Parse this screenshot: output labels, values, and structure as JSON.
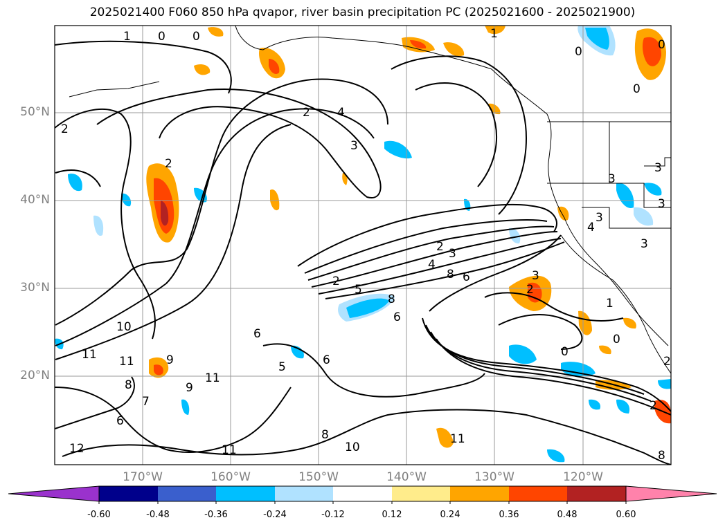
{
  "title": "2025021400 F060 850 hPa qvapor, river basin precipitation PC (2025021600 - 2025021900)",
  "map": {
    "lat_ticks": [
      {
        "label": "50°N",
        "lat": 50
      },
      {
        "label": "40°N",
        "lat": 40
      },
      {
        "label": "30°N",
        "lat": 30
      },
      {
        "label": "20°N",
        "lat": 20
      }
    ],
    "lon_ticks": [
      {
        "label": "170°W",
        "lon": -170
      },
      {
        "label": "160°W",
        "lon": -160
      },
      {
        "label": "150°W",
        "lon": -150
      },
      {
        "label": "140°W",
        "lon": -140
      },
      {
        "label": "130°W",
        "lon": -130
      },
      {
        "label": "120°W",
        "lon": -120
      }
    ],
    "extent": {
      "lon_min": -180,
      "lon_max": -110,
      "lat_min": 10,
      "lat_max": 60
    },
    "contour_labels": [
      "0",
      "1",
      "2",
      "3",
      "4",
      "5",
      "6",
      "7",
      "8",
      "9",
      "10",
      "11",
      "12"
    ],
    "gridlines": true
  },
  "colorbar": {
    "ticks": [
      "-0.60",
      "-0.48",
      "-0.36",
      "-0.24",
      "-0.12",
      "0.12",
      "0.24",
      "0.36",
      "0.48",
      "0.60"
    ],
    "colors": [
      "#9a32cd",
      "#00008b",
      "#3a5fcd",
      "#00bfff",
      "#b0e2ff",
      "#ffffff",
      "#ffec8b",
      "#ffa500",
      "#ff4500",
      "#b22222",
      "#ff82ab"
    ],
    "extend": "both"
  }
}
